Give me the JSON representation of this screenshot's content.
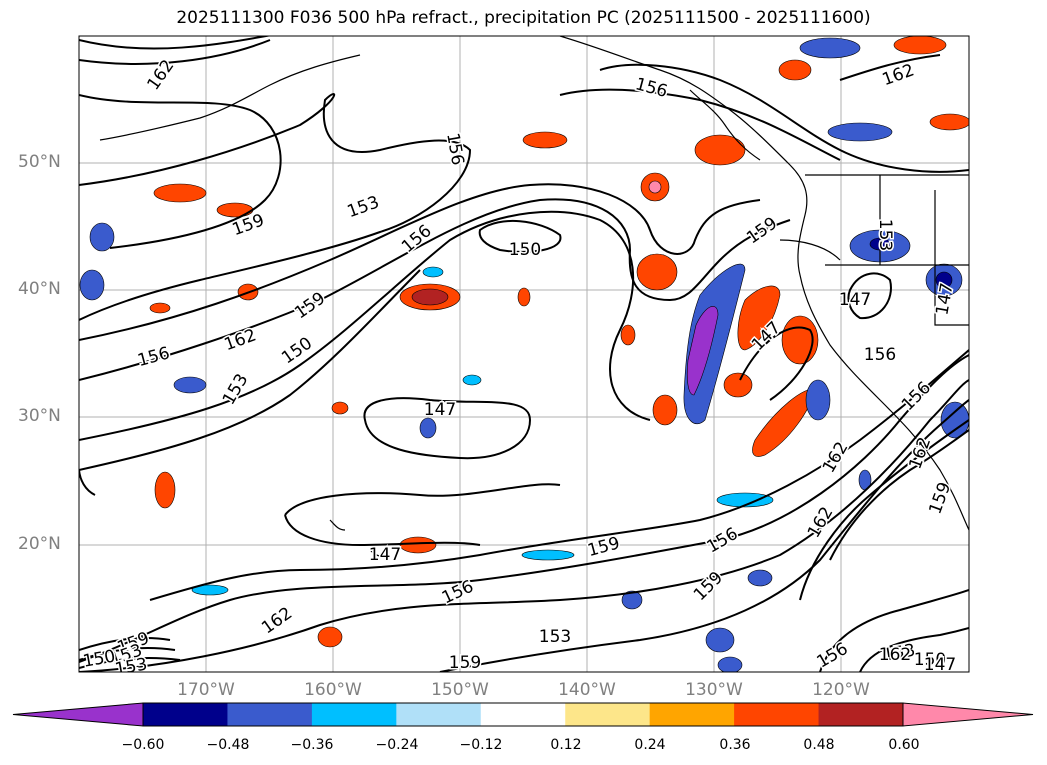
{
  "title": "2025111300 F036 500 hPa refract., precipitation PC (2025111500 - 2025111600)",
  "map": {
    "latitude_labels": [
      "50°N",
      "40°N",
      "30°N",
      "20°N"
    ],
    "longitude_labels": [
      "170°W",
      "160°W",
      "150°W",
      "140°W",
      "130°W",
      "120°W"
    ],
    "contour_labels": [
      "162",
      "156",
      "153",
      "159",
      "150",
      "156",
      "162",
      "159",
      "150",
      "153",
      "156",
      "147",
      "156",
      "159",
      "162",
      "153",
      "147",
      "147",
      "147",
      "162",
      "162",
      "147",
      "159",
      "156",
      "162",
      "153",
      "159",
      "156",
      "159",
      "156",
      "153",
      "150",
      "147",
      "156",
      "162",
      "159",
      "159",
      "153",
      "153",
      "150",
      "156",
      "162"
    ]
  },
  "colorbar": {
    "ticks": [
      "−0.60",
      "−0.48",
      "−0.36",
      "−0.24",
      "−0.12",
      "0.12",
      "0.24",
      "0.36",
      "0.48",
      "0.60"
    ],
    "colors": [
      "#9932cc",
      "#00008b",
      "#3a5bcd",
      "#00bfff",
      "#b0e0f8",
      "#ffffff",
      "#fde68a",
      "#ffa500",
      "#ff4500",
      "#b22222",
      "#ff88aa"
    ]
  }
}
